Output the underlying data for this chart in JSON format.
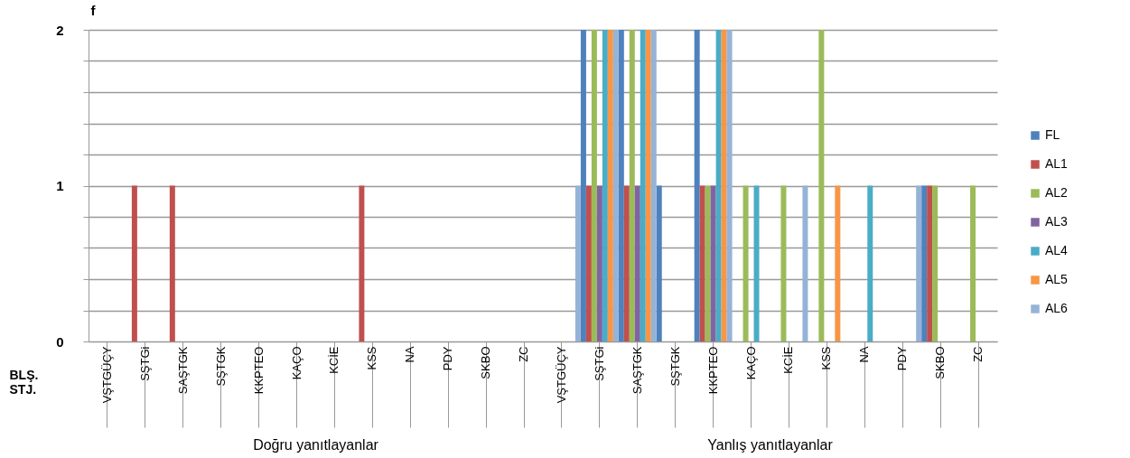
{
  "chart_data": {
    "type": "bar",
    "ylabel": "f",
    "xlabel": "BLŞ. STJ.",
    "categories": [
      "VŞTGÜÇY",
      "SŞTGi",
      "SAŞTGK",
      "SŞTGK",
      "KKPTEO",
      "KAÇO",
      "KCİE",
      "KSS",
      "NA",
      "PDY",
      "SKBO",
      "ZC",
      "VŞTGÜÇY",
      "SŞTGi",
      "SAŞTGK",
      "SŞTGK",
      "KKPTEO",
      "KAÇO",
      "KCİE",
      "KSS",
      "NA",
      "PDY",
      "SKBO",
      "ZC"
    ],
    "annotations": [
      "Doğru yanıtlayanlar",
      "Yanlış yanıtlayanlar"
    ],
    "series": [
      {
        "name": "FL",
        "color": "#4f81bd",
        "values": [
          0,
          0,
          0,
          0,
          0,
          0,
          0,
          0,
          0,
          0,
          0,
          0,
          0,
          2,
          2,
          1,
          2,
          0,
          0,
          0,
          0,
          0,
          1,
          0
        ]
      },
      {
        "name": "AL1",
        "color": "#c0504d",
        "values": [
          0,
          1,
          1,
          0,
          0,
          0,
          0,
          1,
          0,
          0,
          0,
          0,
          0,
          1,
          1,
          0,
          1,
          0,
          0,
          0,
          0,
          0,
          1,
          0
        ]
      },
      {
        "name": "AL2",
        "color": "#9bbb59",
        "values": [
          0,
          0,
          0,
          0,
          0,
          0,
          0,
          0,
          0,
          0,
          0,
          0,
          0,
          2,
          2,
          0,
          1,
          1,
          1,
          2,
          0,
          0,
          1,
          1
        ]
      },
      {
        "name": "AL3",
        "color": "#8064a2",
        "values": [
          0,
          0,
          0,
          0,
          0,
          0,
          0,
          0,
          0,
          0,
          0,
          0,
          0,
          1,
          1,
          0,
          1,
          0,
          0,
          0,
          0,
          0,
          0,
          0
        ]
      },
      {
        "name": "AL4",
        "color": "#4bacc6",
        "values": [
          0,
          0,
          0,
          0,
          0,
          0,
          0,
          0,
          0,
          0,
          0,
          0,
          0,
          2,
          2,
          0,
          2,
          1,
          0,
          0,
          1,
          0,
          0,
          0
        ]
      },
      {
        "name": "AL5",
        "color": "#f79646",
        "values": [
          0,
          0,
          0,
          0,
          0,
          0,
          0,
          0,
          0,
          0,
          0,
          0,
          0,
          2,
          2,
          0,
          2,
          0,
          0,
          1,
          0,
          0,
          0,
          0
        ]
      },
      {
        "name": "AL6",
        "color": "#95b3d7",
        "values": [
          0,
          0,
          0,
          0,
          0,
          0,
          0,
          0,
          0,
          0,
          0,
          0,
          1,
          2,
          2,
          0,
          2,
          0,
          1,
          0,
          0,
          1,
          0,
          0
        ]
      }
    ],
    "ylim": [
      0,
      2
    ],
    "yticks": [
      0,
      {
        "value": 0.2,
        "label": null
      },
      {
        "value": 0.4,
        "label": null
      },
      {
        "value": 0.6,
        "label": null
      },
      {
        "value": 0.8,
        "label": null
      },
      1,
      {
        "value": 1.2,
        "label": null
      },
      {
        "value": 1.4,
        "label": null
      },
      {
        "value": 1.6,
        "label": null
      },
      {
        "value": 1.8,
        "label": null
      },
      2
    ],
    "grid": "y",
    "legend": "right"
  }
}
